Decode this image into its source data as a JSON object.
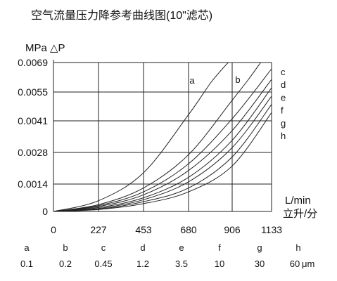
{
  "chart_data": {
    "type": "line",
    "title": "空气流量压力降参考曲线图(10\"滤芯)",
    "ylabel": "MPa △P",
    "xlabel_line1": "L/min",
    "xlabel_line2": "立升/分",
    "y_ticks": [
      0,
      0.0014,
      0.0028,
      0.0041,
      0.0055,
      0.0069
    ],
    "y_tick_labels": [
      "0",
      "0.0014",
      "0.0028",
      "0.0041",
      "0.0055",
      "0.0069"
    ],
    "x_ticks": [
      0,
      227,
      453,
      680,
      906,
      1133
    ],
    "x_tick_labels": [
      "0",
      "227",
      "453",
      "680",
      "906",
      "1133"
    ],
    "xlim": [
      0,
      1133
    ],
    "ylim": [
      0,
      0.0069
    ],
    "grid": true,
    "legend_labels": [
      "c",
      "d",
      "e",
      "f",
      "g",
      "h"
    ],
    "series": [
      {
        "name": "a",
        "x": [
          0,
          227,
          453,
          680,
          800,
          906,
          960
        ],
        "y": [
          0,
          0.00055,
          0.0019,
          0.0044,
          0.006,
          0.0071,
          0.0075
        ]
      },
      {
        "name": "b",
        "x": [
          0,
          227,
          453,
          680,
          906,
          1000,
          1070
        ],
        "y": [
          0,
          0.00035,
          0.0012,
          0.0027,
          0.0051,
          0.0061,
          0.0069
        ]
      },
      {
        "name": "c",
        "x": [
          0,
          227,
          453,
          680,
          906,
          1133
        ],
        "y": [
          0,
          0.0003,
          0.001,
          0.0023,
          0.0042,
          0.0066
        ]
      },
      {
        "name": "d",
        "x": [
          0,
          227,
          453,
          680,
          906,
          1133
        ],
        "y": [
          0,
          0.00025,
          0.00085,
          0.002,
          0.0037,
          0.0061
        ]
      },
      {
        "name": "e",
        "x": [
          0,
          227,
          453,
          680,
          906,
          1133
        ],
        "y": [
          0,
          0.0002,
          0.0007,
          0.0017,
          0.0033,
          0.0057
        ]
      },
      {
        "name": "f",
        "x": [
          0,
          227,
          453,
          680,
          906,
          1133
        ],
        "y": [
          0,
          0.00015,
          0.0006,
          0.0015,
          0.003,
          0.0053
        ]
      },
      {
        "name": "g",
        "x": [
          0,
          227,
          453,
          680,
          906,
          1133
        ],
        "y": [
          0,
          0.00012,
          0.0005,
          0.0012,
          0.0026,
          0.0049
        ]
      },
      {
        "name": "h",
        "x": [
          0,
          227,
          453,
          680,
          906,
          1133
        ],
        "y": [
          0,
          0.0001,
          0.0004,
          0.001,
          0.0022,
          0.0045
        ]
      }
    ],
    "grade_table": {
      "letters": [
        "a",
        "b",
        "c",
        "d",
        "e",
        "f",
        "g",
        "h"
      ],
      "values": [
        "0.1",
        "0.2",
        "0.45",
        "1.2",
        "3.5",
        "10",
        "30",
        "60"
      ],
      "unit": "μm"
    }
  },
  "colors": {
    "line": "#222222",
    "grid": "#222222",
    "text": "#111111"
  }
}
